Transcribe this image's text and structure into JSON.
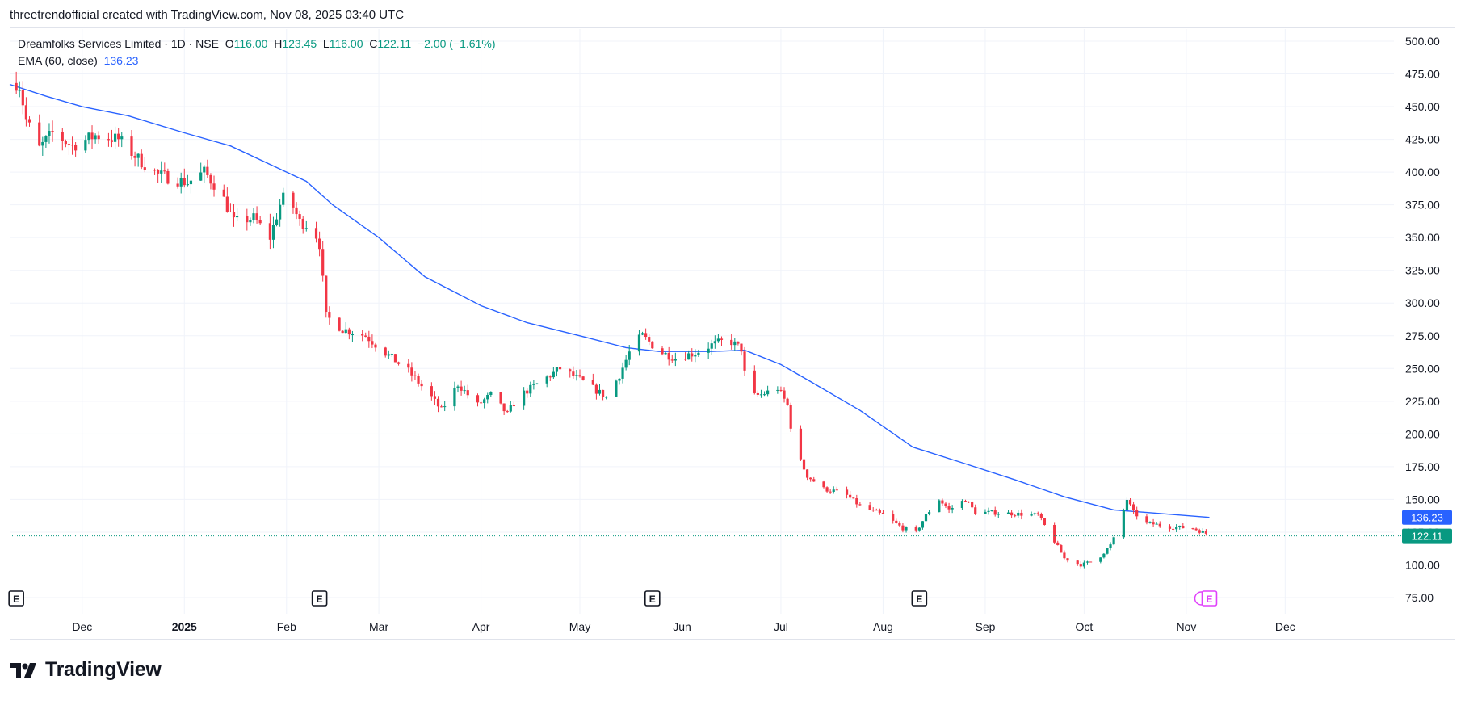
{
  "header": {
    "text": "threetrendofficial created with TradingView.com, Nov 08, 2025 03:40 UTC"
  },
  "legend": {
    "symbol": "Dreamfolks Services Limited · 1D · NSE",
    "open_label": "O",
    "open": "116.00",
    "high_label": "H",
    "high": "123.45",
    "low_label": "L",
    "low": "116.00",
    "close_label": "C",
    "close": "122.11",
    "change": "−2.00 (−1.61%)",
    "ema_label": "EMA (60, close)",
    "ema_value": "136.23"
  },
  "badges": {
    "ema": "136.23",
    "price": "122.11"
  },
  "event_marker": "E",
  "logo": {
    "text": "TradingView"
  },
  "colors": {
    "up": "#089981",
    "down": "#f23645",
    "ema": "#2962ff",
    "grid": "#f0f3fa",
    "text": "#131722"
  },
  "chart_data": {
    "type": "candlestick",
    "ylim": [
      75,
      500
    ],
    "y_ticks": [
      "500.00",
      "475.00",
      "450.00",
      "425.00",
      "400.00",
      "375.00",
      "350.00",
      "325.00",
      "300.00",
      "275.00",
      "250.00",
      "225.00",
      "200.00",
      "175.00",
      "150.00",
      "125.00",
      "100.00",
      "75.00"
    ],
    "x_ticks": [
      {
        "label": "Dec",
        "date": "2024-12-01",
        "bold": false
      },
      {
        "label": "2025",
        "date": "2025-01-01",
        "bold": true
      },
      {
        "label": "Feb",
        "date": "2025-02-01",
        "bold": false
      },
      {
        "label": "Mar",
        "date": "2025-03-01",
        "bold": false
      },
      {
        "label": "Apr",
        "date": "2025-04-01",
        "bold": false
      },
      {
        "label": "May",
        "date": "2025-05-01",
        "bold": false
      },
      {
        "label": "Jun",
        "date": "2025-06-01",
        "bold": false
      },
      {
        "label": "Jul",
        "date": "2025-07-01",
        "bold": false
      },
      {
        "label": "Aug",
        "date": "2025-08-01",
        "bold": false
      },
      {
        "label": "Sep",
        "date": "2025-09-01",
        "bold": false
      },
      {
        "label": "Oct",
        "date": "2025-10-01",
        "bold": false
      },
      {
        "label": "Nov",
        "date": "2025-11-01",
        "bold": false
      },
      {
        "label": "Dec",
        "date": "2025-12-01",
        "bold": false
      }
    ],
    "x_range": [
      "2024-11-09",
      "2026-01-03"
    ],
    "earnings_events": [
      "2024-11-11",
      "2025-02-11",
      "2025-05-23",
      "2025-08-12",
      "2025-11-08"
    ],
    "last_close": 122.11,
    "ema_last": 136.23,
    "close_path": [
      [
        "2024-11-11",
        468
      ],
      [
        "2024-11-12",
        466
      ],
      [
        "2024-11-14",
        440
      ],
      [
        "2024-11-18",
        418
      ],
      [
        "2024-11-22",
        430
      ],
      [
        "2024-11-28",
        420
      ],
      [
        "2024-12-05",
        428
      ],
      [
        "2024-12-12",
        425
      ],
      [
        "2024-12-18",
        410
      ],
      [
        "2024-12-24",
        398
      ],
      [
        "2025-01-02",
        392
      ],
      [
        "2025-01-07",
        400
      ],
      [
        "2025-01-12",
        385
      ],
      [
        "2025-01-16",
        362
      ],
      [
        "2025-01-22",
        365
      ],
      [
        "2025-01-27",
        350
      ],
      [
        "2025-01-30",
        375
      ],
      [
        "2025-02-01",
        385
      ],
      [
        "2025-02-05",
        362
      ],
      [
        "2025-02-09",
        358
      ],
      [
        "2025-02-11",
        345
      ],
      [
        "2025-02-13",
        290
      ],
      [
        "2025-02-18",
        280
      ],
      [
        "2025-02-25",
        275
      ],
      [
        "2025-03-03",
        262
      ],
      [
        "2025-03-10",
        248
      ],
      [
        "2025-03-17",
        228
      ],
      [
        "2025-03-20",
        218
      ],
      [
        "2025-03-25",
        238
      ],
      [
        "2025-03-31",
        222
      ],
      [
        "2025-04-04",
        230
      ],
      [
        "2025-04-09",
        215
      ],
      [
        "2025-04-12",
        228
      ],
      [
        "2025-04-18",
        238
      ],
      [
        "2025-04-25",
        250
      ],
      [
        "2025-05-02",
        240
      ],
      [
        "2025-05-09",
        228
      ],
      [
        "2025-05-13",
        245
      ],
      [
        "2025-05-17",
        268
      ],
      [
        "2025-05-20",
        275
      ],
      [
        "2025-05-23",
        268
      ],
      [
        "2025-05-26",
        262
      ],
      [
        "2025-05-30",
        258
      ],
      [
        "2025-06-05",
        262
      ],
      [
        "2025-06-10",
        268
      ],
      [
        "2025-06-15",
        272
      ],
      [
        "2025-06-19",
        265
      ],
      [
        "2025-06-21",
        228
      ],
      [
        "2025-06-25",
        230
      ],
      [
        "2025-06-30",
        235
      ],
      [
        "2025-07-03",
        222
      ],
      [
        "2025-07-05",
        190
      ],
      [
        "2025-07-09",
        168
      ],
      [
        "2025-07-14",
        158
      ],
      [
        "2025-07-20",
        155
      ],
      [
        "2025-07-25",
        145
      ],
      [
        "2025-08-01",
        138
      ],
      [
        "2025-08-07",
        128
      ],
      [
        "2025-08-11",
        125
      ],
      [
        "2025-08-14",
        138
      ],
      [
        "2025-08-18",
        150
      ],
      [
        "2025-08-21",
        142
      ],
      [
        "2025-08-26",
        150
      ],
      [
        "2025-08-29",
        140
      ],
      [
        "2025-09-03",
        140
      ],
      [
        "2025-09-10",
        139
      ],
      [
        "2025-09-17",
        138
      ],
      [
        "2025-09-22",
        118
      ],
      [
        "2025-09-25",
        105
      ],
      [
        "2025-09-30",
        100
      ],
      [
        "2025-10-05",
        104
      ],
      [
        "2025-10-09",
        115
      ],
      [
        "2025-10-11",
        125
      ],
      [
        "2025-10-14",
        150
      ],
      [
        "2025-10-16",
        140
      ],
      [
        "2025-10-20",
        132
      ],
      [
        "2025-10-27",
        129
      ],
      [
        "2025-11-03",
        128
      ],
      [
        "2025-11-07",
        124
      ],
      [
        "2025-11-08",
        122
      ]
    ],
    "ema_path": [
      [
        "2024-11-09",
        467
      ],
      [
        "2024-11-20",
        458
      ],
      [
        "2024-12-01",
        450
      ],
      [
        "2024-12-15",
        443
      ],
      [
        "2025-01-01",
        430
      ],
      [
        "2025-01-15",
        420
      ],
      [
        "2025-02-01",
        400
      ],
      [
        "2025-02-07",
        393
      ],
      [
        "2025-02-15",
        375
      ],
      [
        "2025-03-01",
        350
      ],
      [
        "2025-03-15",
        320
      ],
      [
        "2025-04-01",
        298
      ],
      [
        "2025-04-15",
        285
      ],
      [
        "2025-05-01",
        275
      ],
      [
        "2025-05-15",
        266
      ],
      [
        "2025-05-25",
        263
      ],
      [
        "2025-06-10",
        263
      ],
      [
        "2025-06-20",
        264
      ],
      [
        "2025-07-01",
        253
      ],
      [
        "2025-07-10",
        240
      ],
      [
        "2025-07-25",
        218
      ],
      [
        "2025-08-10",
        190
      ],
      [
        "2025-08-25",
        178
      ],
      [
        "2025-09-10",
        165
      ],
      [
        "2025-09-25",
        152
      ],
      [
        "2025-10-10",
        142
      ],
      [
        "2025-10-20",
        140
      ],
      [
        "2025-11-08",
        136.23
      ]
    ]
  }
}
